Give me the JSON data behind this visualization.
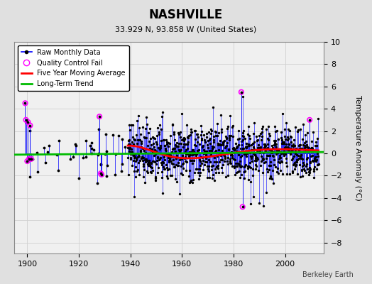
{
  "title": "NASHVILLE",
  "subtitle": "33.929 N, 93.858 W (United States)",
  "ylabel": "Temperature Anomaly (°C)",
  "watermark": "Berkeley Earth",
  "xlim": [
    1895,
    2015
  ],
  "ylim": [
    -9,
    10
  ],
  "yticks": [
    -8,
    -6,
    -4,
    -2,
    0,
    2,
    4,
    6,
    8,
    10
  ],
  "xticks": [
    1900,
    1920,
    1940,
    1960,
    1980,
    2000
  ],
  "bg_color": "#e0e0e0",
  "plot_bg_color": "#f0f0f0",
  "grid_color": "#d0d0d0",
  "raw_line_color": "#0000ff",
  "raw_marker_color": "#000000",
  "qc_fail_color": "#ff00ff",
  "moving_avg_color": "#ff0000",
  "trend_color": "#00bb00",
  "seed": 12345
}
